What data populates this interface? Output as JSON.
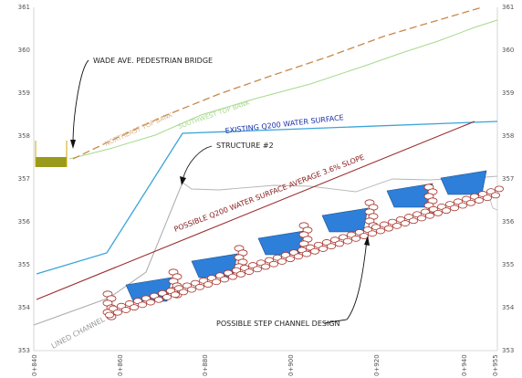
{
  "y_axis": {
    "ticks": [
      "361",
      "360",
      "359",
      "358",
      "357",
      "356",
      "355",
      "354",
      "353"
    ]
  },
  "x_axis": {
    "ticks": [
      "0+840",
      "0+860",
      "0+880",
      "0+900",
      "0+920",
      "0+940",
      "0+955"
    ]
  },
  "labels": {
    "bridge": "WADE AVE. PEDESTRIAN BRIDGE",
    "northeast_bank": "NORTHEAST TOP BANK",
    "southwest_bank": "SOUTHWEST TOP BANK",
    "existing_ws": "EXISTING Q200 WATER SURFACE",
    "structure": "STRUCTURE #2",
    "possible_ws": "POSSIBLE Q200 WATER SURFACE   AVERAGE 3.6% SLOPE",
    "lined_channel": "LINED CHANNEL",
    "step_design": "POSSIBLE STEP CHANNEL DESIGN"
  },
  "colors": {
    "northeast_bank": "#c8894a",
    "southwest_bank": "#a7d98c",
    "existing_ws": "#3aa4d8",
    "existing_ws_label": "#1a2fa8",
    "possible_ws": "#9a2b2b",
    "water_fill": "#2e7fd9",
    "rock": "#a9352c",
    "bridge": "#9a9a1c",
    "lined_channel": "#aaaaaa",
    "existing_grade": "#b5b5b5"
  }
}
